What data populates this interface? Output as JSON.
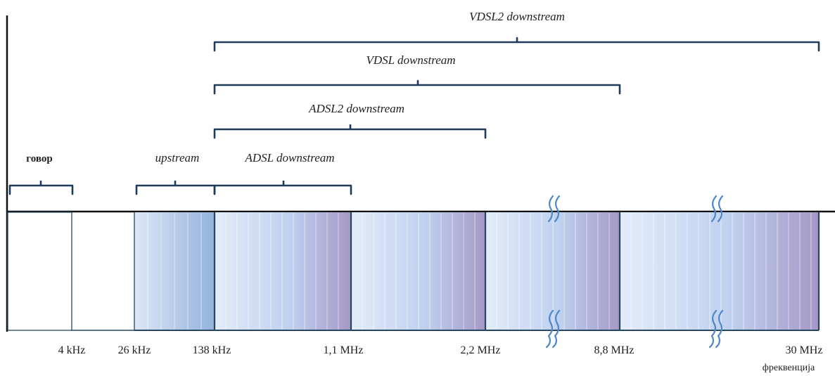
{
  "braces": {
    "vdsl2": "VDSL2 downstream",
    "vdsl": "VDSL downstream",
    "adsl2": "ADSL2 downstream",
    "adsl": "ADSL downstream",
    "upstream": "upstream",
    "voice": "говор"
  },
  "frequency_ticks": [
    "4 kHz",
    "26 kHz",
    "138 kHz",
    "1,1 MHz",
    "2,2 MHz",
    "8,8 MHz",
    "30 MHz"
  ],
  "axis_label": "фреквенција",
  "colors": {
    "band_light": "#dde8f7",
    "band_mid": "#b8cdeb",
    "band_purple": "#a99cc9",
    "upstream_dark": "#93b2dc",
    "brace": "#1f3b5c",
    "break_marks": "#4f88c6"
  }
}
